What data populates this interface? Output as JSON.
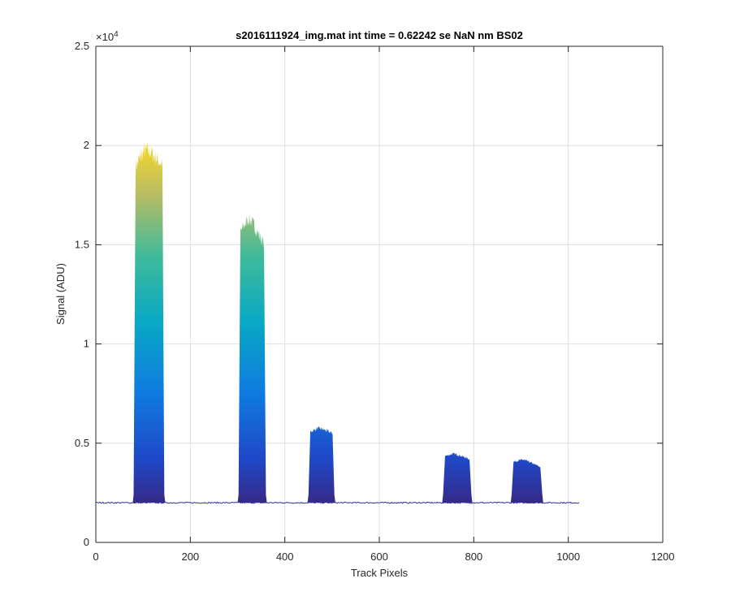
{
  "chart_data": {
    "type": "area",
    "title": "s2016111924_img.mat int time = 0.62242 se  NaN nm BS02",
    "xlabel": "Track Pixels",
    "ylabel": "Signal (ADU)",
    "xlim": [
      0,
      1200
    ],
    "ylim": [
      0,
      25000
    ],
    "x_ticks": [
      0,
      200,
      400,
      600,
      800,
      1000,
      1200
    ],
    "x_tick_labels": [
      "0",
      "200",
      "400",
      "600",
      "800",
      "1000",
      "1200"
    ],
    "y_ticks": [
      0,
      5000,
      10000,
      15000,
      20000,
      25000
    ],
    "y_tick_labels": [
      "0",
      "0.5",
      "1",
      "1.5",
      "2",
      "2.5"
    ],
    "y_exponent_label": "×10",
    "y_exponent_power": "4",
    "grid": true,
    "legend": "none",
    "colormap": "parula",
    "baseline": 2000,
    "data_x_range": [
      1,
      1024
    ],
    "peaks": [
      {
        "x_start": 80,
        "x_end": 145,
        "peak": 20000,
        "right_edge": 19000
      },
      {
        "x_start": 302,
        "x_end": 360,
        "peak": 16500,
        "right_edge": 15000
      },
      {
        "x_start": 450,
        "x_end": 505,
        "peak": 5800,
        "right_edge": 5500
      },
      {
        "x_start": 735,
        "x_end": 795,
        "peak": 4500,
        "right_edge": 4200
      },
      {
        "x_start": 880,
        "x_end": 945,
        "peak": 4200,
        "right_edge": 3800
      }
    ]
  },
  "colors": {
    "axes": "#262626",
    "grid": "#dfdfdf",
    "baseline_line": "#2b2fa0",
    "parula_low": "#352a87",
    "parula_mid_blue": "#0f6ed8",
    "parula_cyan": "#10b2b6",
    "parula_green": "#8cbd5a",
    "parula_yellow": "#f9d825"
  }
}
